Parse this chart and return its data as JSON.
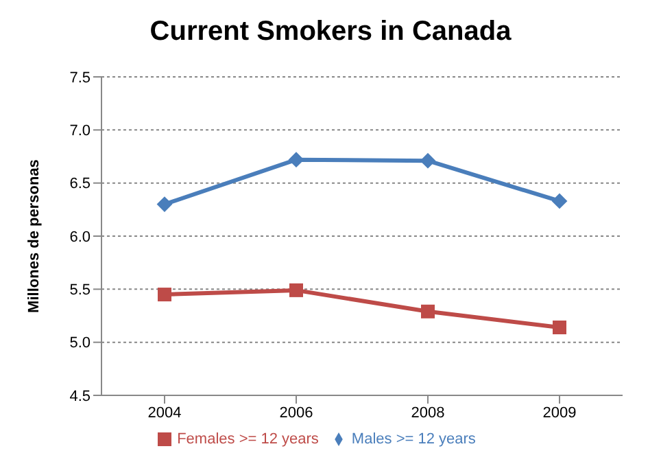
{
  "chart_data": {
    "type": "line",
    "title": "Current Smokers in Canada",
    "ylabel": "Millones de personas",
    "categories": [
      "2004",
      "2006",
      "2008",
      "2009"
    ],
    "series": [
      {
        "name": "Males >= 12 years",
        "color": "#4a7ebb",
        "marker": "diamond",
        "values": [
          6.3,
          6.72,
          6.71,
          6.33
        ]
      },
      {
        "name": "Females >= 12 years",
        "color": "#be4b48",
        "marker": "square",
        "values": [
          5.45,
          5.49,
          5.29,
          5.14
        ]
      }
    ],
    "ylim": [
      4.5,
      7.5
    ],
    "yticks": [
      {
        "value": 4.5,
        "label": "4.5"
      },
      {
        "value": 5,
        "label": "5.0"
      },
      {
        "value": 5.5,
        "label": "5.5"
      },
      {
        "value": 6,
        "label": "6.0"
      },
      {
        "value": 6.5,
        "label": "6.5"
      },
      {
        "value": 7,
        "label": "7.0"
      },
      {
        "value": 7.5,
        "label": "7.5"
      }
    ],
    "grid": "y",
    "legend": "bottom",
    "line_style": "solid"
  }
}
